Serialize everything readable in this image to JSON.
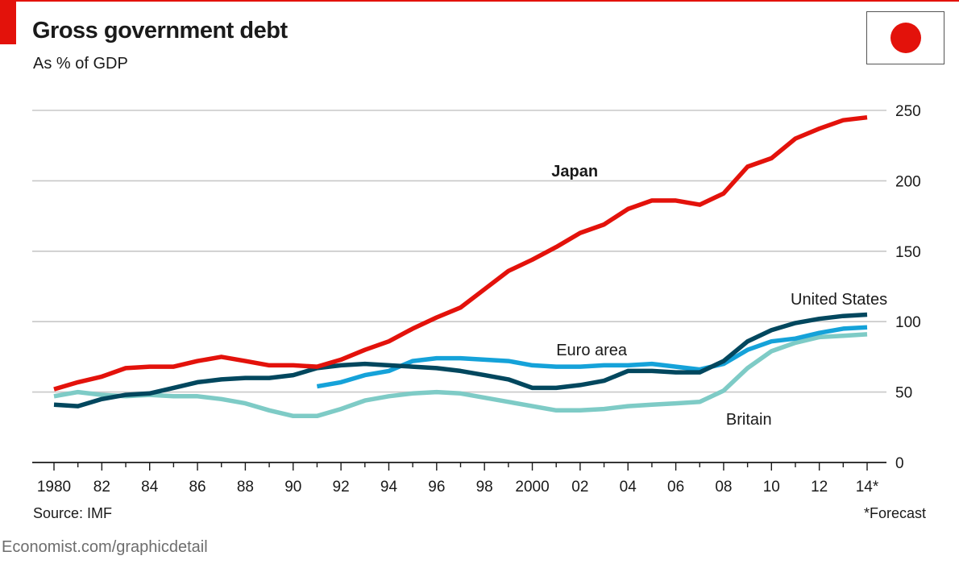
{
  "header": {
    "title": "Gross government debt",
    "subtitle": "As % of GDP"
  },
  "flag": {
    "icon": "japan-flag-icon",
    "disc_color": "#e3120b"
  },
  "footer": {
    "source": "Source: IMF",
    "footnote": "*Forecast",
    "credit": "Economist.com/graphicdetail"
  },
  "colors": {
    "accent": "#e3120b"
  },
  "chart_data": {
    "type": "line",
    "title": "Gross government debt",
    "subtitle": "As % of GDP",
    "xlabel": "",
    "ylabel": "",
    "xlim": [
      1980,
      2014
    ],
    "ylim": [
      0,
      250
    ],
    "yticks": [
      0,
      50,
      100,
      150,
      200,
      250
    ],
    "y_axis_side": "right",
    "grid": true,
    "x_ticks": [
      {
        "value": 1980,
        "label": "1980"
      },
      {
        "value": 1982,
        "label": "82"
      },
      {
        "value": 1984,
        "label": "84"
      },
      {
        "value": 1986,
        "label": "86"
      },
      {
        "value": 1988,
        "label": "88"
      },
      {
        "value": 1990,
        "label": "90"
      },
      {
        "value": 1992,
        "label": "92"
      },
      {
        "value": 1994,
        "label": "94"
      },
      {
        "value": 1996,
        "label": "96"
      },
      {
        "value": 1998,
        "label": "98"
      },
      {
        "value": 2000,
        "label": "2000"
      },
      {
        "value": 2002,
        "label": "02"
      },
      {
        "value": 2004,
        "label": "04"
      },
      {
        "value": 2006,
        "label": "06"
      },
      {
        "value": 2008,
        "label": "08"
      },
      {
        "value": 2010,
        "label": "10"
      },
      {
        "value": 2012,
        "label": "12"
      },
      {
        "value": 2014,
        "label": "14*"
      }
    ],
    "series": [
      {
        "name": "Japan",
        "label_bold": true,
        "color": "#e3120b",
        "label_at": [
          2000.8,
          203
        ],
        "x": [
          1980,
          1981,
          1982,
          1983,
          1984,
          1985,
          1986,
          1987,
          1988,
          1989,
          1990,
          1991,
          1992,
          1993,
          1994,
          1995,
          1996,
          1997,
          1998,
          1999,
          2000,
          2001,
          2002,
          2003,
          2004,
          2005,
          2006,
          2007,
          2008,
          2009,
          2010,
          2011,
          2012,
          2013,
          2014
        ],
        "values": [
          52,
          57,
          61,
          67,
          68,
          68,
          72,
          75,
          72,
          69,
          69,
          68,
          73,
          80,
          86,
          95,
          103,
          110,
          123,
          136,
          144,
          153,
          163,
          169,
          180,
          186,
          186,
          183,
          191,
          210,
          216,
          230,
          237,
          243,
          245
        ]
      },
      {
        "name": "United States",
        "label_bold": false,
        "color": "#02475e",
        "label_at": [
          2010.8,
          112
        ],
        "x": [
          1980,
          1981,
          1982,
          1983,
          1984,
          1985,
          1986,
          1987,
          1988,
          1989,
          1990,
          1991,
          1992,
          1993,
          1994,
          1995,
          1996,
          1997,
          1998,
          1999,
          2000,
          2001,
          2002,
          2003,
          2004,
          2005,
          2006,
          2007,
          2008,
          2009,
          2010,
          2011,
          2012,
          2013,
          2014
        ],
        "values": [
          41,
          40,
          45,
          48,
          49,
          53,
          57,
          59,
          60,
          60,
          62,
          67,
          69,
          70,
          69,
          68,
          67,
          65,
          62,
          59,
          53,
          53,
          55,
          58,
          65,
          65,
          64,
          64,
          72,
          86,
          94,
          99,
          102,
          104,
          105
        ]
      },
      {
        "name": "Euro area",
        "label_bold": false,
        "color": "#15a2d9",
        "label_at": [
          2001,
          76
        ],
        "x": [
          1991,
          1992,
          1993,
          1994,
          1995,
          1996,
          1997,
          1998,
          1999,
          2000,
          2001,
          2002,
          2003,
          2004,
          2005,
          2006,
          2007,
          2008,
          2009,
          2010,
          2011,
          2012,
          2013,
          2014
        ],
        "values": [
          54,
          57,
          62,
          65,
          72,
          74,
          74,
          73,
          72,
          69,
          68,
          68,
          69,
          69,
          70,
          68,
          66,
          70,
          80,
          86,
          88,
          92,
          95,
          96
        ]
      },
      {
        "name": "Britain",
        "label_bold": false,
        "color": "#7ecbc6",
        "label_at": [
          2008.1,
          27
        ],
        "x": [
          1980,
          1981,
          1982,
          1983,
          1984,
          1985,
          1986,
          1987,
          1988,
          1989,
          1990,
          1991,
          1992,
          1993,
          1994,
          1995,
          1996,
          1997,
          1998,
          1999,
          2000,
          2001,
          2002,
          2003,
          2004,
          2005,
          2006,
          2007,
          2008,
          2009,
          2010,
          2011,
          2012,
          2013,
          2014
        ],
        "values": [
          47,
          50,
          48,
          47,
          48,
          47,
          47,
          45,
          42,
          37,
          33,
          33,
          38,
          44,
          47,
          49,
          50,
          49,
          46,
          43,
          40,
          37,
          37,
          38,
          40,
          41,
          42,
          43,
          51,
          67,
          79,
          85,
          89,
          90,
          91
        ]
      }
    ]
  }
}
